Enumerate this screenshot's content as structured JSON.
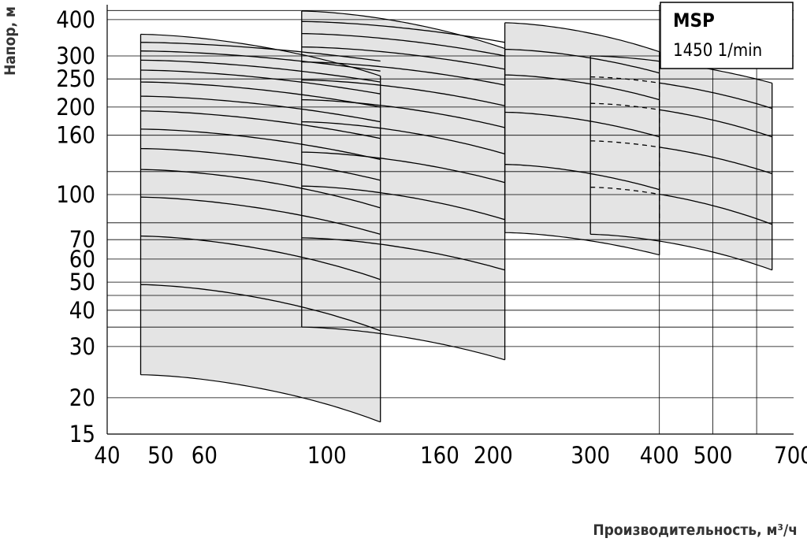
{
  "chart_data": {
    "type": "area",
    "title": "",
    "xlabel": "Производительность, м³/ч",
    "ylabel": "Напор, м",
    "xscale": "log",
    "yscale": "log",
    "xlim": [
      40,
      700
    ],
    "ylim": [
      15,
      450
    ],
    "x_ticks": [
      40,
      50,
      60,
      100,
      160,
      200,
      300,
      400,
      500,
      700
    ],
    "y_ticks": [
      15,
      20,
      30,
      40,
      50,
      60,
      70,
      100,
      160,
      200,
      250,
      300,
      400
    ],
    "gridlines_y": [
      35,
      45,
      80,
      120,
      430
    ],
    "gridlines_x": [
      400,
      500,
      600
    ],
    "legend": {
      "title": "MSP",
      "subtitle": "1450 1/min",
      "position": "top-right"
    },
    "fill_color": "#e4e4e4",
    "line_color": "#000000",
    "regions": [
      {
        "x": [
          46,
          125
        ],
        "curves": [
          {
            "h0": 24,
            "h1": 16.5
          },
          {
            "h0": 49,
            "h1": 34
          },
          {
            "h0": 72,
            "h1": 51
          },
          {
            "h0": 98,
            "h1": 73
          },
          {
            "h0": 122,
            "h1": 90
          },
          {
            "h0": 144,
            "h1": 112
          },
          {
            "h0": 168,
            "h1": 132
          },
          {
            "h0": 194,
            "h1": 156
          },
          {
            "h0": 218,
            "h1": 178
          },
          {
            "h0": 244,
            "h1": 200
          },
          {
            "h0": 268,
            "h1": 222
          },
          {
            "h0": 290,
            "h1": 244
          },
          {
            "h0": 312,
            "h1": 266
          },
          {
            "h0": 334,
            "h1": 288
          },
          {
            "h0": 356,
            "h1": 256
          }
        ]
      },
      {
        "x": [
          90,
          210
        ],
        "curves": [
          {
            "h0": 35,
            "h1": 27
          },
          {
            "h0": 71,
            "h1": 55
          },
          {
            "h0": 107,
            "h1": 82
          },
          {
            "h0": 140,
            "h1": 110
          },
          {
            "h0": 178,
            "h1": 138
          },
          {
            "h0": 212,
            "h1": 170
          },
          {
            "h0": 248,
            "h1": 202
          },
          {
            "h0": 286,
            "h1": 238
          },
          {
            "h0": 322,
            "h1": 270
          },
          {
            "h0": 358,
            "h1": 300
          },
          {
            "h0": 394,
            "h1": 334
          },
          {
            "h0": 428,
            "h1": 318
          }
        ]
      },
      {
        "x": [
          210,
          400
        ],
        "curves": [
          {
            "h0": 74,
            "h1": 62
          },
          {
            "h0": 127,
            "h1": 104
          },
          {
            "h0": 192,
            "h1": 158
          },
          {
            "h0": 258,
            "h1": 212
          },
          {
            "h0": 316,
            "h1": 262
          },
          {
            "h0": 390,
            "h1": 310
          }
        ]
      },
      {
        "x": [
          300,
          640
        ],
        "curves": [
          {
            "h0": 73,
            "h1": 55
          },
          {
            "h0": 106,
            "h1": 79
          },
          {
            "h0": 153,
            "h1": 118
          },
          {
            "h0": 206,
            "h1": 158
          },
          {
            "h0": 254,
            "h1": 198
          },
          {
            "h0": 300,
            "h1": 242
          }
        ],
        "dashed_segment_x": [
          300,
          400
        ]
      }
    ]
  }
}
